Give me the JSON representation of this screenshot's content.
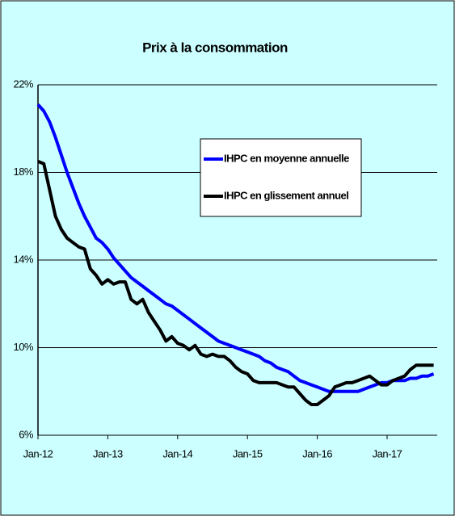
{
  "chart_data": {
    "type": "line",
    "title": "Prix à la consommation",
    "x": [
      "Jan-12",
      null,
      null,
      null,
      null,
      null,
      null,
      null,
      null,
      null,
      null,
      null,
      "Jan-13",
      null,
      null,
      null,
      null,
      null,
      null,
      null,
      null,
      null,
      null,
      null,
      "Jan-14",
      null,
      null,
      null,
      null,
      null,
      null,
      null,
      null,
      null,
      null,
      null,
      "Jan-15",
      null,
      null,
      null,
      null,
      null,
      null,
      null,
      null,
      null,
      null,
      null,
      "Jan-16",
      null,
      null,
      null,
      null,
      null,
      null,
      null,
      null,
      null,
      null,
      null,
      "Jan-17",
      null,
      null,
      null,
      null,
      null,
      null,
      null,
      null
    ],
    "series": [
      {
        "name": "IHPC en moyenne annuelle",
        "color": "#0000ff",
        "values": [
          21.1,
          20.8,
          20.3,
          19.6,
          18.8,
          18.0,
          17.3,
          16.6,
          16.0,
          15.5,
          15.0,
          14.8,
          14.5,
          14.1,
          13.8,
          13.5,
          13.2,
          13.0,
          12.8,
          12.6,
          12.4,
          12.2,
          12.0,
          11.9,
          11.7,
          11.5,
          11.3,
          11.1,
          10.9,
          10.7,
          10.5,
          10.3,
          10.2,
          10.1,
          10.0,
          9.9,
          9.8,
          9.7,
          9.6,
          9.4,
          9.3,
          9.1,
          9.0,
          8.9,
          8.7,
          8.5,
          8.4,
          8.3,
          8.2,
          8.1,
          8.0,
          8.0,
          8.0,
          8.0,
          8.0,
          8.0,
          8.1,
          8.2,
          8.3,
          8.4,
          8.4,
          8.5,
          8.5,
          8.5,
          8.6,
          8.6,
          8.7,
          8.7,
          8.8
        ]
      },
      {
        "name": "IHPC en glissement annuel",
        "color": "#000000",
        "values": [
          18.5,
          18.4,
          17.2,
          16.0,
          15.4,
          15.0,
          14.8,
          14.6,
          14.5,
          13.6,
          13.3,
          12.9,
          13.1,
          12.9,
          13.0,
          13.0,
          12.2,
          12.0,
          12.2,
          11.6,
          11.2,
          10.8,
          10.3,
          10.5,
          10.2,
          10.1,
          9.9,
          10.1,
          9.7,
          9.6,
          9.7,
          9.6,
          9.6,
          9.4,
          9.1,
          8.9,
          8.8,
          8.5,
          8.4,
          8.4,
          8.4,
          8.4,
          8.3,
          8.2,
          8.2,
          7.9,
          7.6,
          7.4,
          7.4,
          7.6,
          7.8,
          8.2,
          8.3,
          8.4,
          8.4,
          8.5,
          8.6,
          8.7,
          8.5,
          8.3,
          8.3,
          8.5,
          8.6,
          8.7,
          9.0,
          9.2,
          9.2,
          9.2,
          9.2
        ]
      }
    ],
    "ylim": [
      6,
      22
    ],
    "yticks": [
      {
        "value": 6,
        "label": "6%"
      },
      {
        "value": 10,
        "label": "10%"
      },
      {
        "value": 14,
        "label": "14%"
      },
      {
        "value": 18,
        "label": "18%"
      },
      {
        "value": 22,
        "label": "22%"
      }
    ],
    "grid": true
  }
}
